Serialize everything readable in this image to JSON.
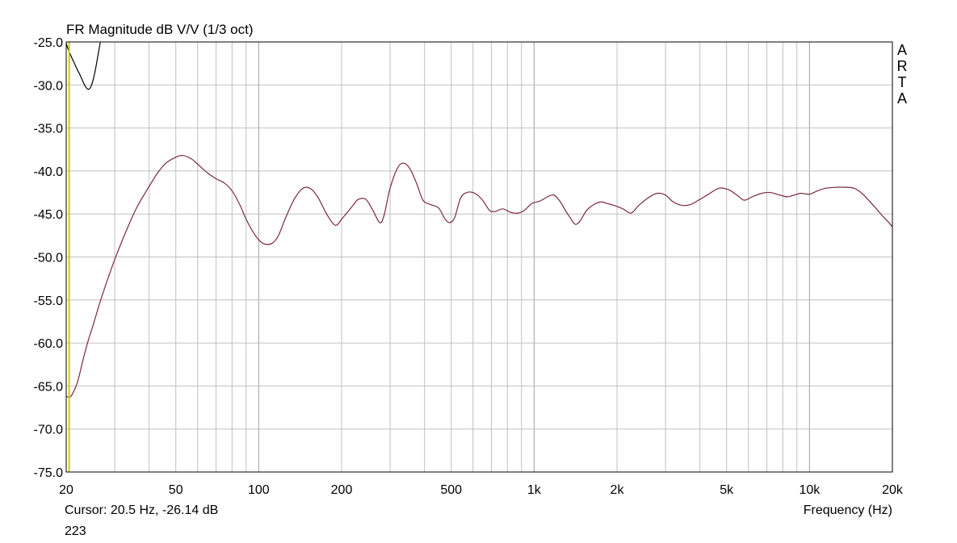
{
  "chart_data": {
    "type": "line",
    "title": "FR Magnitude dB V/V (1/3 oct)",
    "xlabel": "Frequency (Hz)",
    "ylabel": "",
    "x_scale": "log",
    "xlim": [
      20,
      20000
    ],
    "ylim": [
      -75,
      -25
    ],
    "y_ticks": [
      -25,
      -30,
      -35,
      -40,
      -45,
      -50,
      -55,
      -60,
      -65,
      -70,
      -75
    ],
    "y_tick_labels": [
      "-25.0",
      "-30.0",
      "-35.0",
      "-40.0",
      "-45.0",
      "-50.0",
      "-55.0",
      "-60.0",
      "-65.0",
      "-70.0",
      "-75.0"
    ],
    "x_ticks": [
      20,
      50,
      100,
      200,
      500,
      1000,
      2000,
      5000,
      10000,
      20000
    ],
    "x_tick_labels": [
      "20",
      "50",
      "100",
      "200",
      "500",
      "1k",
      "2k",
      "5k",
      "10k",
      "20k"
    ],
    "grid": true,
    "watermark": "ARTA",
    "cursor_readout": "Cursor: 20.5 Hz, -26.14 dB",
    "bottom_number": "223",
    "cursor_frequency_hz": 20.5,
    "colors": {
      "main_trace": "#7a2a3a",
      "secondary_trace": "#000000",
      "cursor_line": "#cccc00",
      "grid": "#c0c0c0",
      "frame": "#000000"
    },
    "series": [
      {
        "color": "#7a2a3a",
        "points": [
          [
            20,
            -66.2
          ],
          [
            20.5,
            -66.3
          ],
          [
            21,
            -66.0
          ],
          [
            22,
            -64.5
          ],
          [
            23,
            -62.0
          ],
          [
            24,
            -59.8
          ],
          [
            25,
            -58.0
          ],
          [
            27,
            -54.5
          ],
          [
            30,
            -50.3
          ],
          [
            33,
            -47.0
          ],
          [
            36,
            -44.3
          ],
          [
            40,
            -41.8
          ],
          [
            43,
            -40.2
          ],
          [
            46,
            -39.1
          ],
          [
            50,
            -38.4
          ],
          [
            53,
            -38.2
          ],
          [
            57,
            -38.6
          ],
          [
            60,
            -39.2
          ],
          [
            65,
            -40.2
          ],
          [
            70,
            -40.9
          ],
          [
            75,
            -41.4
          ],
          [
            80,
            -42.3
          ],
          [
            85,
            -43.8
          ],
          [
            90,
            -45.6
          ],
          [
            95,
            -47.0
          ],
          [
            100,
            -48.0
          ],
          [
            105,
            -48.5
          ],
          [
            112,
            -48.4
          ],
          [
            118,
            -47.5
          ],
          [
            125,
            -45.5
          ],
          [
            135,
            -43.2
          ],
          [
            145,
            -42.0
          ],
          [
            155,
            -42.1
          ],
          [
            165,
            -43.2
          ],
          [
            175,
            -44.8
          ],
          [
            185,
            -46.0
          ],
          [
            192,
            -46.3
          ],
          [
            200,
            -45.6
          ],
          [
            210,
            -44.8
          ],
          [
            220,
            -44.0
          ],
          [
            230,
            -43.3
          ],
          [
            245,
            -43.3
          ],
          [
            260,
            -44.6
          ],
          [
            275,
            -46.0
          ],
          [
            285,
            -45.2
          ],
          [
            300,
            -42.0
          ],
          [
            320,
            -39.6
          ],
          [
            337,
            -39.1
          ],
          [
            355,
            -39.8
          ],
          [
            375,
            -41.5
          ],
          [
            395,
            -43.4
          ],
          [
            420,
            -43.9
          ],
          [
            450,
            -44.3
          ],
          [
            475,
            -45.6
          ],
          [
            495,
            -46.0
          ],
          [
            515,
            -45.4
          ],
          [
            540,
            -43.2
          ],
          [
            570,
            -42.5
          ],
          [
            610,
            -42.6
          ],
          [
            650,
            -43.4
          ],
          [
            690,
            -44.6
          ],
          [
            725,
            -44.7
          ],
          [
            770,
            -44.4
          ],
          [
            820,
            -44.8
          ],
          [
            870,
            -44.9
          ],
          [
            920,
            -44.6
          ],
          [
            980,
            -43.8
          ],
          [
            1050,
            -43.5
          ],
          [
            1120,
            -43.0
          ],
          [
            1180,
            -42.8
          ],
          [
            1240,
            -43.5
          ],
          [
            1300,
            -44.6
          ],
          [
            1350,
            -45.4
          ],
          [
            1410,
            -46.2
          ],
          [
            1470,
            -45.8
          ],
          [
            1550,
            -44.6
          ],
          [
            1650,
            -43.9
          ],
          [
            1750,
            -43.6
          ],
          [
            1850,
            -43.8
          ],
          [
            1950,
            -44.0
          ],
          [
            2100,
            -44.4
          ],
          [
            2250,
            -44.9
          ],
          [
            2400,
            -44.0
          ],
          [
            2600,
            -43.1
          ],
          [
            2800,
            -42.6
          ],
          [
            3000,
            -42.8
          ],
          [
            3200,
            -43.6
          ],
          [
            3450,
            -44.0
          ],
          [
            3700,
            -43.9
          ],
          [
            4000,
            -43.3
          ],
          [
            4300,
            -42.7
          ],
          [
            4700,
            -42.0
          ],
          [
            5100,
            -42.2
          ],
          [
            5500,
            -42.9
          ],
          [
            5800,
            -43.4
          ],
          [
            6200,
            -43.0
          ],
          [
            6700,
            -42.6
          ],
          [
            7200,
            -42.5
          ],
          [
            7800,
            -42.8
          ],
          [
            8300,
            -43.0
          ],
          [
            8800,
            -42.8
          ],
          [
            9300,
            -42.6
          ],
          [
            10000,
            -42.7
          ],
          [
            10700,
            -42.3
          ],
          [
            11500,
            -42.0
          ],
          [
            12500,
            -41.9
          ],
          [
            13500,
            -41.9
          ],
          [
            14500,
            -42.0
          ],
          [
            15500,
            -42.6
          ],
          [
            16500,
            -43.5
          ],
          [
            17500,
            -44.4
          ],
          [
            18500,
            -45.3
          ],
          [
            19300,
            -45.9
          ],
          [
            20000,
            -46.5
          ]
        ]
      },
      {
        "color": "#000000",
        "points": [
          [
            20,
            -25.2
          ],
          [
            20.5,
            -26.14
          ],
          [
            21,
            -26.9
          ],
          [
            21.5,
            -27.6
          ],
          [
            22,
            -28.3
          ],
          [
            22.5,
            -28.9
          ],
          [
            23,
            -29.6
          ],
          [
            23.5,
            -30.2
          ],
          [
            24,
            -30.5
          ],
          [
            24.5,
            -30.3
          ],
          [
            25,
            -29.5
          ],
          [
            25.5,
            -28.3
          ],
          [
            26,
            -26.8
          ],
          [
            26.5,
            -25.3
          ],
          [
            26.8,
            -24.4
          ]
        ]
      }
    ]
  }
}
